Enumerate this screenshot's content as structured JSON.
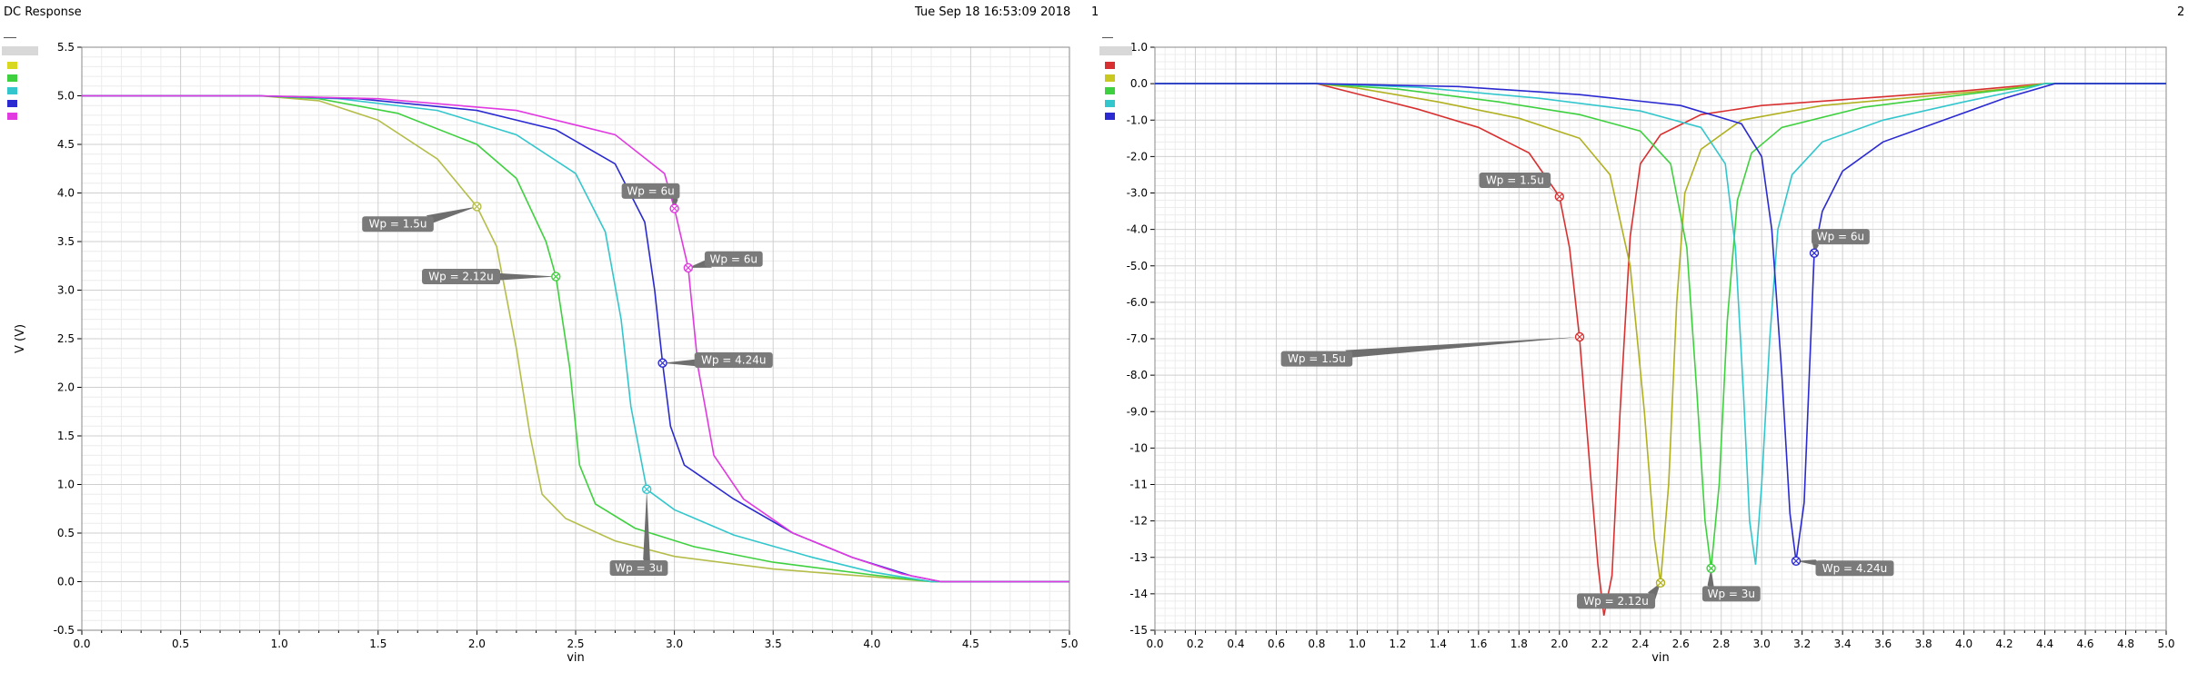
{
  "header": {
    "title": "DC Response",
    "timestamp": "Tue Sep 18 16:53:09 2018",
    "page_left": "1",
    "page_right": "2"
  },
  "colors": {
    "wp1_5": "#b5bd4a",
    "wp2_12": "#3fd03f",
    "wp3": "#33c6cc",
    "wp4_24": "#2a2ad0",
    "wp6": "#e03ae0",
    "wp1_5_right": "#d83030",
    "wp2_12_right": "#b0b020"
  },
  "chart_data": [
    {
      "type": "line",
      "title": "",
      "xlabel": "vin",
      "ylabel": "V (V)",
      "xlim": [
        0.0,
        5.0
      ],
      "ylim": [
        -0.5,
        5.5
      ],
      "xticks": [
        "0.0",
        "0.5",
        "1.0",
        "1.5",
        "2.0",
        "2.5",
        "3.0",
        "3.5",
        "4.0",
        "4.5",
        "5.0"
      ],
      "yticks": [
        "-0.5",
        "0.0",
        "0.5",
        "1.0",
        "1.5",
        "2.0",
        "2.5",
        "3.0",
        "3.5",
        "4.0",
        "4.5",
        "5.0",
        "5.5"
      ],
      "grid": true,
      "legend": {
        "placement": "top-left",
        "swatches": [
          "#d8d820",
          "#3fd03f",
          "#33c6cc",
          "#2a2ad0",
          "#e03ae0"
        ]
      },
      "series": [
        {
          "color": "#b5bd4a",
          "points": [
            [
              0,
              5
            ],
            [
              0.9,
              5
            ],
            [
              1.2,
              4.95
            ],
            [
              1.5,
              4.75
            ],
            [
              1.8,
              4.35
            ],
            [
              2.0,
              3.86
            ],
            [
              2.1,
              3.45
            ],
            [
              2.2,
              2.4
            ],
            [
              2.27,
              1.5
            ],
            [
              2.33,
              0.9
            ],
            [
              2.45,
              0.65
            ],
            [
              2.7,
              0.42
            ],
            [
              3.0,
              0.26
            ],
            [
              3.5,
              0.13
            ],
            [
              4.0,
              0.05
            ],
            [
              4.3,
              0
            ],
            [
              5,
              0
            ]
          ]
        },
        {
          "color": "#3fd03f",
          "points": [
            [
              0,
              5
            ],
            [
              0.9,
              5
            ],
            [
              1.2,
              4.97
            ],
            [
              1.6,
              4.82
            ],
            [
              2.0,
              4.5
            ],
            [
              2.2,
              4.15
            ],
            [
              2.35,
              3.5
            ],
            [
              2.4,
              3.14
            ],
            [
              2.47,
              2.2
            ],
            [
              2.52,
              1.2
            ],
            [
              2.6,
              0.8
            ],
            [
              2.8,
              0.55
            ],
            [
              3.1,
              0.36
            ],
            [
              3.5,
              0.2
            ],
            [
              4.0,
              0.07
            ],
            [
              4.3,
              0
            ],
            [
              5,
              0
            ]
          ]
        },
        {
          "color": "#33c6cc",
          "points": [
            [
              0,
              5
            ],
            [
              0.9,
              5
            ],
            [
              1.3,
              4.97
            ],
            [
              1.8,
              4.85
            ],
            [
              2.2,
              4.6
            ],
            [
              2.5,
              4.2
            ],
            [
              2.65,
              3.6
            ],
            [
              2.73,
              2.7
            ],
            [
              2.78,
              1.8
            ],
            [
              2.86,
              0.95
            ],
            [
              3.0,
              0.74
            ],
            [
              3.3,
              0.48
            ],
            [
              3.7,
              0.25
            ],
            [
              4.0,
              0.1
            ],
            [
              4.3,
              0
            ],
            [
              5,
              0
            ]
          ]
        },
        {
          "color": "#2a2ad0",
          "points": [
            [
              0,
              5
            ],
            [
              0.9,
              5
            ],
            [
              1.4,
              4.97
            ],
            [
              2.0,
              4.85
            ],
            [
              2.4,
              4.65
            ],
            [
              2.7,
              4.3
            ],
            [
              2.85,
              3.7
            ],
            [
              2.9,
              3.0
            ],
            [
              2.94,
              2.25
            ],
            [
              2.98,
              1.6
            ],
            [
              3.05,
              1.2
            ],
            [
              3.3,
              0.85
            ],
            [
              3.6,
              0.5
            ],
            [
              3.9,
              0.25
            ],
            [
              4.2,
              0.06
            ],
            [
              4.35,
              0
            ],
            [
              5,
              0
            ]
          ]
        },
        {
          "color": "#e03ae0",
          "points": [
            [
              0,
              5
            ],
            [
              0.9,
              5
            ],
            [
              1.5,
              4.97
            ],
            [
              2.2,
              4.85
            ],
            [
              2.7,
              4.6
            ],
            [
              2.95,
              4.2
            ],
            [
              3.0,
              3.84
            ],
            [
              3.07,
              3.23
            ],
            [
              3.12,
              2.2
            ],
            [
              3.2,
              1.3
            ],
            [
              3.35,
              0.85
            ],
            [
              3.6,
              0.5
            ],
            [
              3.9,
              0.25
            ],
            [
              4.15,
              0.08
            ],
            [
              4.35,
              0
            ],
            [
              5,
              0
            ]
          ]
        }
      ],
      "markers": [
        {
          "label": "Wp = 1.5u",
          "x": 2.0,
          "y": 3.86,
          "color": "#b5bd4a",
          "label_x": 1.6,
          "label_y": 3.68
        },
        {
          "label": "Wp = 2.12u",
          "x": 2.4,
          "y": 3.14,
          "color": "#3fd03f",
          "label_x": 1.92,
          "label_y": 3.14
        },
        {
          "label": "Wp = 3u",
          "x": 2.86,
          "y": 0.95,
          "color": "#33c6cc",
          "label_x": 2.82,
          "label_y": 0.14
        },
        {
          "label": "Wp = 4.24u",
          "x": 2.94,
          "y": 2.25,
          "color": "#2a2ad0",
          "label_x": 3.3,
          "label_y": 2.28
        },
        {
          "label": "Wp = 6u",
          "x": 3.0,
          "y": 3.84,
          "color": "#e03ae0",
          "label_x": 2.88,
          "label_y": 4.02
        },
        {
          "label": "Wp = 6u",
          "x": 3.07,
          "y": 3.23,
          "color": "#e03ae0",
          "label_x": 3.3,
          "label_y": 3.32
        }
      ]
    },
    {
      "type": "line",
      "title": "",
      "xlabel": "vin",
      "ylabel": "",
      "xlim": [
        0.0,
        5.0
      ],
      "ylim": [
        -15.0,
        1.0
      ],
      "xticks": [
        "0.0",
        "0.2",
        "0.4",
        "0.6",
        "0.8",
        "1.0",
        "1.2",
        "1.4",
        "1.6",
        "1.8",
        "2.0",
        "2.2",
        "2.4",
        "2.6",
        "2.8",
        "3.0",
        "3.2",
        "3.4",
        "3.6",
        "3.8",
        "4.0",
        "4.2",
        "4.4",
        "4.6",
        "4.8",
        "5.0"
      ],
      "yticks": [
        "-15",
        "-14",
        "-13",
        "-12",
        "-11",
        "-10",
        "-9.0",
        "-8.0",
        "-7.0",
        "-6.0",
        "-5.0",
        "-4.0",
        "-3.0",
        "-2.0",
        "-1.0",
        "0.0",
        "1.0"
      ],
      "grid": true,
      "legend": {
        "placement": "top-left",
        "swatches": [
          "#d83030",
          "#c8c820",
          "#3fd03f",
          "#33c6cc",
          "#2a2ad0"
        ]
      },
      "series": [
        {
          "color": "#d83030",
          "points": [
            [
              0,
              0
            ],
            [
              0.8,
              0
            ],
            [
              1.0,
              -0.28
            ],
            [
              1.3,
              -0.7
            ],
            [
              1.6,
              -1.2
            ],
            [
              1.85,
              -1.9
            ],
            [
              2.0,
              -3.1
            ],
            [
              2.05,
              -4.5
            ],
            [
              2.1,
              -7.0
            ],
            [
              2.15,
              -10.5
            ],
            [
              2.19,
              -13.2
            ],
            [
              2.22,
              -14.6
            ],
            [
              2.26,
              -13.5
            ],
            [
              2.3,
              -9.0
            ],
            [
              2.35,
              -4.2
            ],
            [
              2.4,
              -2.2
            ],
            [
              2.5,
              -1.4
            ],
            [
              2.7,
              -0.85
            ],
            [
              3.0,
              -0.6
            ],
            [
              3.5,
              -0.4
            ],
            [
              4.0,
              -0.2
            ],
            [
              4.4,
              0
            ],
            [
              5,
              0
            ]
          ]
        },
        {
          "color": "#b0b020",
          "points": [
            [
              0,
              0
            ],
            [
              0.8,
              0
            ],
            [
              1.0,
              -0.12
            ],
            [
              1.4,
              -0.5
            ],
            [
              1.8,
              -0.95
            ],
            [
              2.1,
              -1.5
            ],
            [
              2.25,
              -2.5
            ],
            [
              2.35,
              -5.0
            ],
            [
              2.42,
              -9.0
            ],
            [
              2.47,
              -12.5
            ],
            [
              2.5,
              -13.7
            ],
            [
              2.54,
              -11.0
            ],
            [
              2.58,
              -6.0
            ],
            [
              2.62,
              -3.0
            ],
            [
              2.7,
              -1.8
            ],
            [
              2.9,
              -1.0
            ],
            [
              3.3,
              -0.6
            ],
            [
              3.8,
              -0.35
            ],
            [
              4.2,
              -0.15
            ],
            [
              4.4,
              0
            ],
            [
              5,
              0
            ]
          ]
        },
        {
          "color": "#3fd03f",
          "points": [
            [
              0,
              0
            ],
            [
              0.8,
              0
            ],
            [
              1.2,
              -0.15
            ],
            [
              1.7,
              -0.5
            ],
            [
              2.1,
              -0.85
            ],
            [
              2.4,
              -1.3
            ],
            [
              2.55,
              -2.2
            ],
            [
              2.63,
              -4.5
            ],
            [
              2.68,
              -8.5
            ],
            [
              2.72,
              -12.0
            ],
            [
              2.75,
              -13.3
            ],
            [
              2.79,
              -11.0
            ],
            [
              2.83,
              -6.5
            ],
            [
              2.88,
              -3.2
            ],
            [
              2.95,
              -1.9
            ],
            [
              3.1,
              -1.2
            ],
            [
              3.5,
              -0.65
            ],
            [
              4.0,
              -0.3
            ],
            [
              4.3,
              -0.1
            ],
            [
              4.4,
              0
            ],
            [
              5,
              0
            ]
          ]
        },
        {
          "color": "#33c6cc",
          "points": [
            [
              0,
              0
            ],
            [
              0.8,
              0
            ],
            [
              1.3,
              -0.1
            ],
            [
              1.9,
              -0.4
            ],
            [
              2.4,
              -0.75
            ],
            [
              2.7,
              -1.2
            ],
            [
              2.82,
              -2.2
            ],
            [
              2.87,
              -4.5
            ],
            [
              2.91,
              -8.5
            ],
            [
              2.94,
              -12.0
            ],
            [
              2.97,
              -13.2
            ],
            [
              3.0,
              -11.0
            ],
            [
              3.04,
              -7.0
            ],
            [
              3.08,
              -4.0
            ],
            [
              3.15,
              -2.5
            ],
            [
              3.3,
              -1.6
            ],
            [
              3.6,
              -1.0
            ],
            [
              4.0,
              -0.5
            ],
            [
              4.3,
              -0.15
            ],
            [
              4.4,
              0
            ],
            [
              5,
              0
            ]
          ]
        },
        {
          "color": "#2a2ad0",
          "points": [
            [
              0,
              0
            ],
            [
              0.8,
              0
            ],
            [
              1.5,
              -0.08
            ],
            [
              2.1,
              -0.3
            ],
            [
              2.6,
              -0.6
            ],
            [
              2.9,
              -1.1
            ],
            [
              3.0,
              -2.0
            ],
            [
              3.05,
              -4.0
            ],
            [
              3.1,
              -8.0
            ],
            [
              3.14,
              -11.8
            ],
            [
              3.17,
              -13.1
            ],
            [
              3.21,
              -11.5
            ],
            [
              3.26,
              -4.65
            ],
            [
              3.3,
              -3.5
            ],
            [
              3.4,
              -2.4
            ],
            [
              3.6,
              -1.6
            ],
            [
              3.9,
              -1.0
            ],
            [
              4.2,
              -0.4
            ],
            [
              4.45,
              0
            ],
            [
              5,
              0
            ]
          ]
        }
      ],
      "markers": [
        {
          "label": "Wp = 1.5u",
          "x": 2.0,
          "y": -3.1,
          "color": "#d83030",
          "label_x": 1.78,
          "label_y": -2.65
        },
        {
          "label": "Wp = 1.5u",
          "x": 2.1,
          "y": -6.95,
          "color": "#d83030",
          "label_x": 0.8,
          "label_y": -7.55
        },
        {
          "label": "Wp = 2.12u",
          "x": 2.5,
          "y": -13.7,
          "color": "#b0b020",
          "label_x": 2.28,
          "label_y": -14.2
        },
        {
          "label": "Wp = 3u",
          "x": 2.75,
          "y": -13.3,
          "color": "#3fd03f",
          "label_x": 2.85,
          "label_y": -14.0
        },
        {
          "label": "Wp = 4.24u",
          "x": 3.17,
          "y": -13.1,
          "color": "#2a2ad0",
          "label_x": 3.46,
          "label_y": -13.3
        },
        {
          "label": "Wp = 6u",
          "x": 3.26,
          "y": -4.65,
          "color": "#2a2ad0",
          "label_x": 3.39,
          "label_y": -4.2
        }
      ]
    }
  ]
}
